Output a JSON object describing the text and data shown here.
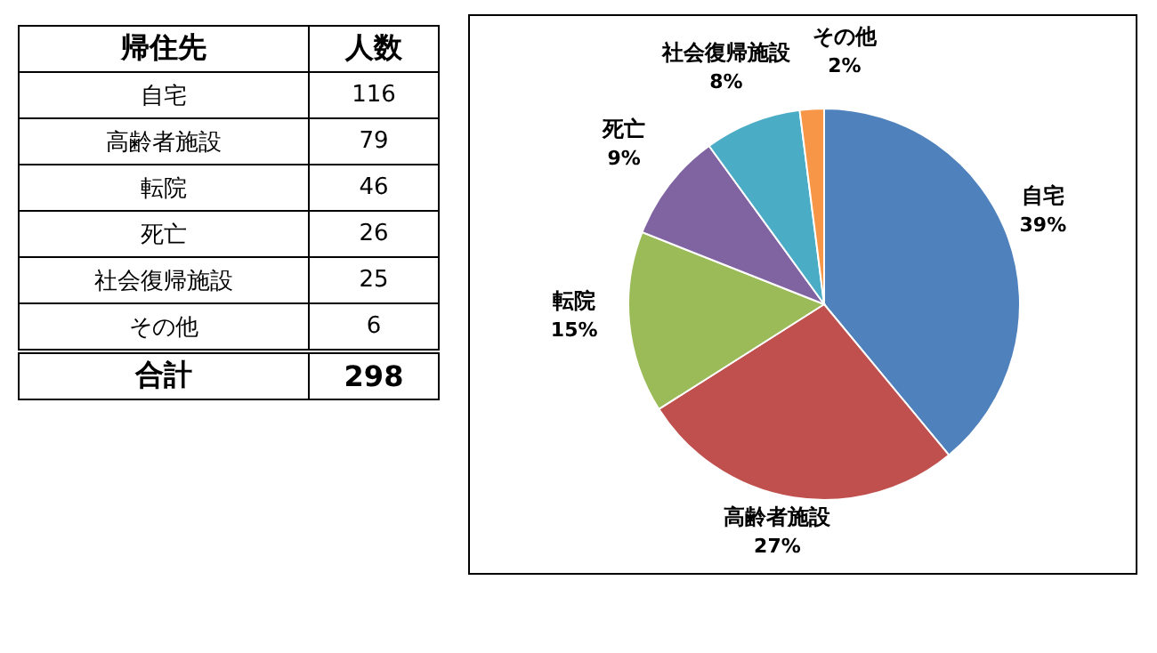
{
  "chart_data": [
    {
      "type": "other",
      "xlabel": "帰住先",
      "ylabel": "人数",
      "categories": [
        "自宅",
        "高齢者施設",
        "転院",
        "死亡",
        "社会復帰施設",
        "その他"
      ],
      "values": [
        116,
        79,
        46,
        26,
        25,
        6
      ],
      "data_labels": true,
      "annotations": [
        "合計"
      ],
      "totals": [
        "298"
      ]
    },
    {
      "type": "pie",
      "categories": [
        "自宅",
        "高齢者施設",
        "転院",
        "死亡",
        "社会復帰施設",
        "その他"
      ],
      "values": [
        39,
        27,
        15,
        9,
        8,
        2
      ],
      "colors": [
        "#4f81bd",
        "#c0504d",
        "#9bbb59",
        "#8064a2",
        "#4bacc6",
        "#f79646"
      ],
      "value_labels": [
        "39%",
        "27%",
        "15%",
        "9%",
        "8%",
        "2%"
      ],
      "legend": false
    }
  ]
}
